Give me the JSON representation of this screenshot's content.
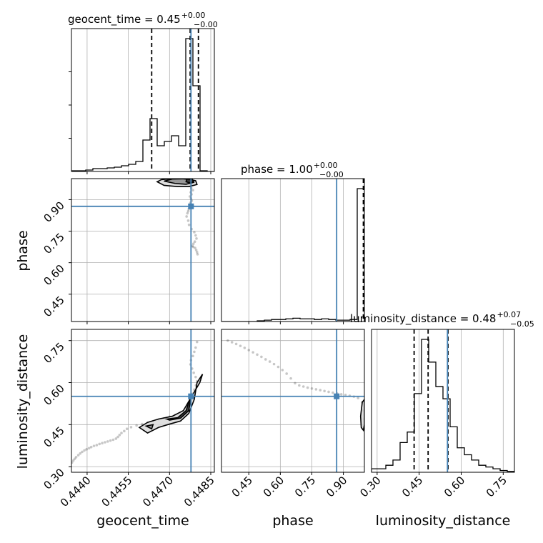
{
  "chart_data": {
    "type": "corner",
    "parameters": [
      "geocent_time",
      "phase",
      "luminosity_distance"
    ],
    "axis_labels": {
      "geocent_time": "geocent_time",
      "phase": "phase",
      "luminosity_distance": "luminosity_distance"
    },
    "titles": [
      {
        "param": "geocent_time",
        "text": "geocent_time = 0.45",
        "plus": "+0.00",
        "minus": "−0.00"
      },
      {
        "param": "phase",
        "text": "phase = 1.00",
        "plus": "+0.00",
        "minus": "−0.00"
      },
      {
        "param": "luminosity_distance",
        "text": "luminosity_distance = 0.48",
        "plus": "+0.07",
        "minus": "−0.05"
      }
    ],
    "ranges": {
      "geocent_time": [
        0.44343,
        0.44863
      ],
      "phase": [
        0.32,
        1.0
      ],
      "luminosity_distance": [
        0.28,
        0.79
      ]
    },
    "ticks": {
      "geocent_time": {
        "values": [
          0.444,
          0.4455,
          0.447,
          0.4485
        ],
        "labels": [
          "0.4440",
          "0.4455",
          "0.4470",
          "0.4485"
        ]
      },
      "phase": {
        "values": [
          0.45,
          0.6,
          0.75,
          0.9
        ],
        "labels": [
          "0.45",
          "0.60",
          "0.75",
          "0.90"
        ]
      },
      "luminosity_distance": {
        "values": [
          0.3,
          0.45,
          0.6,
          0.75
        ],
        "labels": [
          "0.30",
          "0.45",
          "0.60",
          "0.75"
        ]
      }
    },
    "truths": {
      "geocent_time": 0.44778,
      "phase": 0.868,
      "luminosity_distance": 0.551
    },
    "quantiles": {
      "geocent_time": [
        0.44635,
        0.44775,
        0.44805
      ],
      "phase": [
        0.995,
        0.998,
        0.999
      ],
      "luminosity_distance": [
        0.432,
        0.482,
        0.553
      ]
    },
    "histograms": {
      "geocent_time": {
        "edges": [
          0.44343,
          0.44369,
          0.44395,
          0.44421,
          0.44447,
          0.44473,
          0.44499,
          0.44525,
          0.44551,
          0.44577,
          0.44603,
          0.44629,
          0.44655,
          0.44681,
          0.44707,
          0.44733,
          0.44759,
          0.44785,
          0.44811,
          0.44837,
          0.44863
        ],
        "counts": [
          0.005,
          0.005,
          0.01,
          0.02,
          0.02,
          0.025,
          0.03,
          0.04,
          0.05,
          0.07,
          0.22,
          0.37,
          0.18,
          0.21,
          0.25,
          0.18,
          0.93,
          0.6,
          0.005,
          0.0
        ]
      },
      "phase": {
        "edges": [
          0.32,
          0.354,
          0.388,
          0.422,
          0.456,
          0.49,
          0.524,
          0.558,
          0.592,
          0.626,
          0.66,
          0.694,
          0.728,
          0.762,
          0.796,
          0.83,
          0.864,
          0.898,
          0.932,
          0.966,
          1.0
        ],
        "counts": [
          0.0,
          0.0,
          0.0,
          0.0,
          0.0,
          0.005,
          0.01,
          0.015,
          0.015,
          0.02,
          0.025,
          0.02,
          0.02,
          0.015,
          0.02,
          0.015,
          0.01,
          0.01,
          0.015,
          1.0
        ]
      },
      "luminosity_distance": {
        "edges": [
          0.28,
          0.3055,
          0.331,
          0.3565,
          0.382,
          0.4075,
          0.433,
          0.4585,
          0.484,
          0.5095,
          0.535,
          0.5605,
          0.586,
          0.6115,
          0.637,
          0.6625,
          0.688,
          0.7135,
          0.739,
          0.7645,
          0.79
        ],
        "counts": [
          0.02,
          0.02,
          0.04,
          0.07,
          0.17,
          0.23,
          0.45,
          0.76,
          0.63,
          0.49,
          0.42,
          0.26,
          0.14,
          0.1,
          0.07,
          0.04,
          0.03,
          0.02,
          0.01,
          0.005
        ]
      }
    },
    "scatter": {
      "geocent_time_phase": {
        "x": [
          0.44775,
          0.44773,
          0.4478,
          0.44782,
          0.44776,
          0.44779,
          0.44785,
          0.44777,
          0.4478,
          0.44774,
          0.44778,
          0.44781,
          0.44776,
          0.44772,
          0.44775,
          0.4477,
          0.44768,
          0.44765,
          0.44762,
          0.44768,
          0.44771,
          0.4478,
          0.4479,
          0.44795,
          0.44798,
          0.44792,
          0.44787,
          0.44783,
          0.44786,
          0.44793,
          0.44797,
          0.448,
          0.44802,
          0.44785
        ],
        "y": [
          0.998,
          0.99,
          0.98,
          0.975,
          0.965,
          0.955,
          0.945,
          0.935,
          0.925,
          0.915,
          0.905,
          0.895,
          0.885,
          0.875,
          0.865,
          0.855,
          0.845,
          0.835,
          0.82,
          0.8,
          0.78,
          0.76,
          0.745,
          0.73,
          0.715,
          0.7,
          0.69,
          0.68,
          0.675,
          0.67,
          0.66,
          0.65,
          0.64,
          0.87
        ]
      },
      "geocent_time_luminosity_distance": {
        "x": [
          0.44345,
          0.4435,
          0.44355,
          0.4436,
          0.44368,
          0.44375,
          0.44382,
          0.4439,
          0.44398,
          0.44407,
          0.44415,
          0.44425,
          0.44435,
          0.44445,
          0.44455,
          0.44465,
          0.44475,
          0.44485,
          0.44495,
          0.44505,
          0.44512,
          0.44518,
          0.44525,
          0.44535,
          0.44545,
          0.4456,
          0.4458,
          0.446,
          0.4462,
          0.4464,
          0.4466,
          0.4468,
          0.447,
          0.4472,
          0.4474,
          0.44755,
          0.44765,
          0.44772,
          0.44778,
          0.44784,
          0.4479,
          0.44796,
          0.448,
          0.44795,
          0.44788,
          0.44782,
          0.44776,
          0.44778,
          0.44785,
          0.4479,
          0.44795,
          0.448
        ],
        "y": [
          0.315,
          0.322,
          0.328,
          0.334,
          0.341,
          0.347,
          0.353,
          0.358,
          0.362,
          0.366,
          0.37,
          0.374,
          0.377,
          0.381,
          0.384,
          0.387,
          0.39,
          0.393,
          0.396,
          0.4,
          0.406,
          0.413,
          0.42,
          0.427,
          0.435,
          0.441,
          0.447,
          0.452,
          0.456,
          0.462,
          0.468,
          0.472,
          0.478,
          0.484,
          0.49,
          0.5,
          0.515,
          0.53,
          0.545,
          0.56,
          0.575,
          0.59,
          0.605,
          0.62,
          0.635,
          0.65,
          0.665,
          0.68,
          0.695,
          0.71,
          0.725,
          0.745
        ]
      },
      "phase_luminosity_distance": {
        "x": [
          0.35,
          0.37,
          0.39,
          0.41,
          0.43,
          0.45,
          0.47,
          0.49,
          0.51,
          0.53,
          0.55,
          0.57,
          0.59,
          0.61,
          0.63,
          0.65,
          0.67,
          0.69,
          0.71,
          0.73,
          0.75,
          0.77,
          0.79,
          0.81,
          0.83,
          0.85,
          0.87,
          0.89,
          0.91,
          0.93,
          0.95,
          0.97,
          0.99,
          0.995,
          0.998
        ],
        "y": [
          0.75,
          0.744,
          0.738,
          0.731,
          0.724,
          0.716,
          0.708,
          0.7,
          0.692,
          0.683,
          0.675,
          0.666,
          0.656,
          0.645,
          0.632,
          0.615,
          0.598,
          0.59,
          0.586,
          0.582,
          0.579,
          0.576,
          0.573,
          0.57,
          0.567,
          0.564,
          0.561,
          0.558,
          0.556,
          0.553,
          0.55,
          0.545,
          0.53,
          0.5,
          0.47
        ]
      }
    },
    "contours": {
      "geocent_time_phase": [
        {
          "x": [
            0.44655,
            0.4468,
            0.4473,
            0.4477,
            0.448,
            0.44795,
            0.4476,
            0.4471,
            0.4467,
            0.44655
          ],
          "y": [
            0.985,
            0.968,
            0.962,
            0.962,
            0.972,
            0.99,
            1.0,
            1.0,
            0.995,
            0.985
          ]
        },
        {
          "x": [
            0.4468,
            0.4472,
            0.4476,
            0.44788,
            0.44782,
            0.4475,
            0.4471,
            0.4468
          ],
          "y": [
            0.988,
            0.977,
            0.973,
            0.982,
            0.995,
            0.999,
            0.998,
            0.988
          ]
        },
        {
          "x": [
            0.4476,
            0.44778,
            0.44788,
            0.44782,
            0.44762,
            0.4476
          ],
          "y": [
            0.985,
            0.978,
            0.988,
            0.998,
            0.997,
            0.985
          ]
        }
      ],
      "geocent_time_luminosity_distance": [
        {
          "x": [
            0.4459,
            0.4462,
            0.4466,
            0.4471,
            0.4475,
            0.4478,
            0.4481,
            0.4482,
            0.448,
            0.4479,
            0.4477,
            0.4474,
            0.447,
            0.4466,
            0.4462,
            0.4459
          ],
          "y": [
            0.44,
            0.458,
            0.47,
            0.48,
            0.5,
            0.55,
            0.6,
            0.63,
            0.6,
            0.54,
            0.49,
            0.463,
            0.452,
            0.44,
            0.42,
            0.44
          ]
        },
        {
          "x": [
            0.44615,
            0.4464,
            0.44635,
            0.44615
          ],
          "y": [
            0.445,
            0.45,
            0.435,
            0.445
          ]
        },
        {
          "x": [
            0.4469,
            0.4473,
            0.4476,
            0.4478,
            0.4477,
            0.4474,
            0.447,
            0.4469
          ],
          "y": [
            0.47,
            0.475,
            0.5,
            0.56,
            0.5,
            0.473,
            0.466,
            0.47
          ]
        }
      ],
      "phase_luminosity_distance": [
        {
          "x": [
            0.985,
            0.995,
            1.0,
            1.0,
            0.99,
            0.982,
            0.985
          ],
          "y": [
            0.44,
            0.43,
            0.45,
            0.54,
            0.53,
            0.48,
            0.44
          ]
        }
      ]
    }
  }
}
